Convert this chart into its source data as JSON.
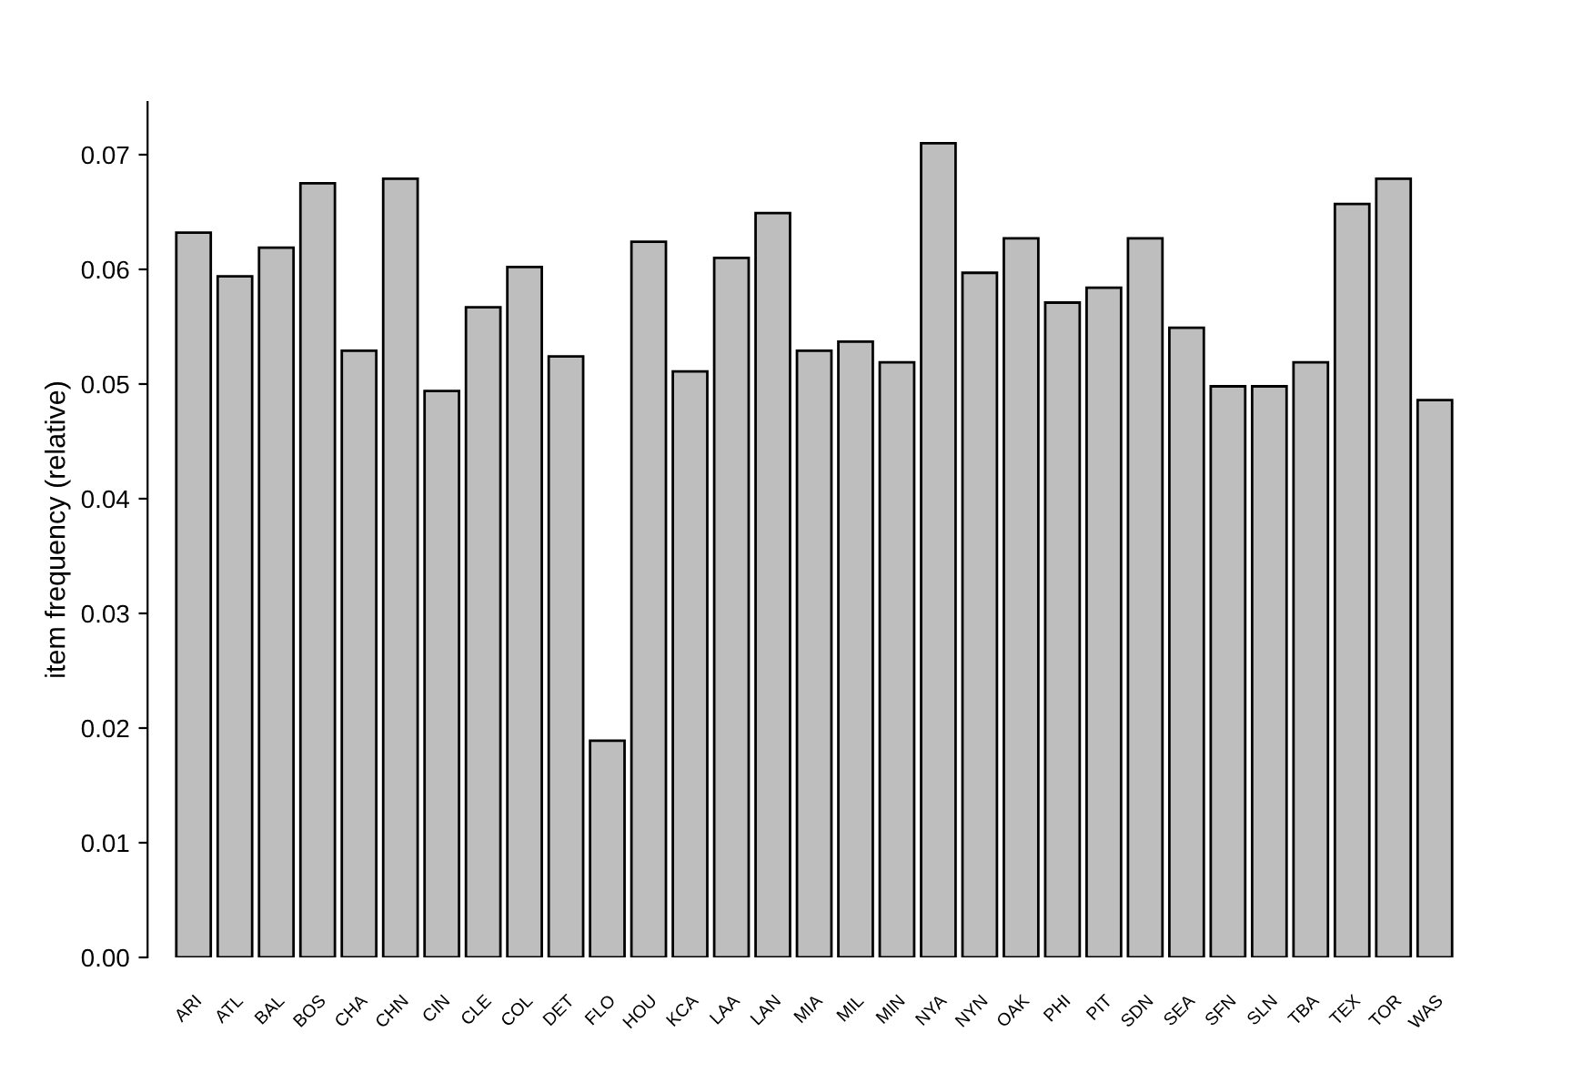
{
  "chart_data": {
    "type": "bar",
    "ylabel": "item frequency (relative)",
    "categories": [
      "ARI",
      "ATL",
      "BAL",
      "BOS",
      "CHA",
      "CHN",
      "CIN",
      "CLE",
      "COL",
      "DET",
      "FLO",
      "HOU",
      "KCA",
      "LAA",
      "LAN",
      "MIA",
      "MIL",
      "MIN",
      "NYA",
      "NYN",
      "OAK",
      "PHI",
      "PIT",
      "SDN",
      "SEA",
      "SFN",
      "SLN",
      "TBA",
      "TEX",
      "TOR",
      "WAS"
    ],
    "values": [
      0.0632,
      0.0594,
      0.0619,
      0.0675,
      0.0529,
      0.0679,
      0.0494,
      0.0567,
      0.0602,
      0.0524,
      0.0189,
      0.0624,
      0.0511,
      0.061,
      0.0649,
      0.0529,
      0.0537,
      0.0519,
      0.071,
      0.0597,
      0.0627,
      0.0571,
      0.0584,
      0.0627,
      0.0549,
      0.0498,
      0.0498,
      0.0519,
      0.0657,
      0.0679,
      0.0486
    ],
    "color": "#bebebe",
    "ylim": [
      0,
      0.0746
    ],
    "yticks": [
      {
        "value": 0,
        "label": "0.00"
      },
      {
        "value": 0.01,
        "label": "0.01"
      },
      {
        "value": 0.02,
        "label": "0.02"
      },
      {
        "value": 0.03,
        "label": "0.03"
      },
      {
        "value": 0.04,
        "label": "0.04"
      },
      {
        "value": 0.05,
        "label": "0.05"
      },
      {
        "value": 0.06,
        "label": "0.06"
      },
      {
        "value": 0.07,
        "label": "0.07"
      }
    ],
    "grid": false
  }
}
